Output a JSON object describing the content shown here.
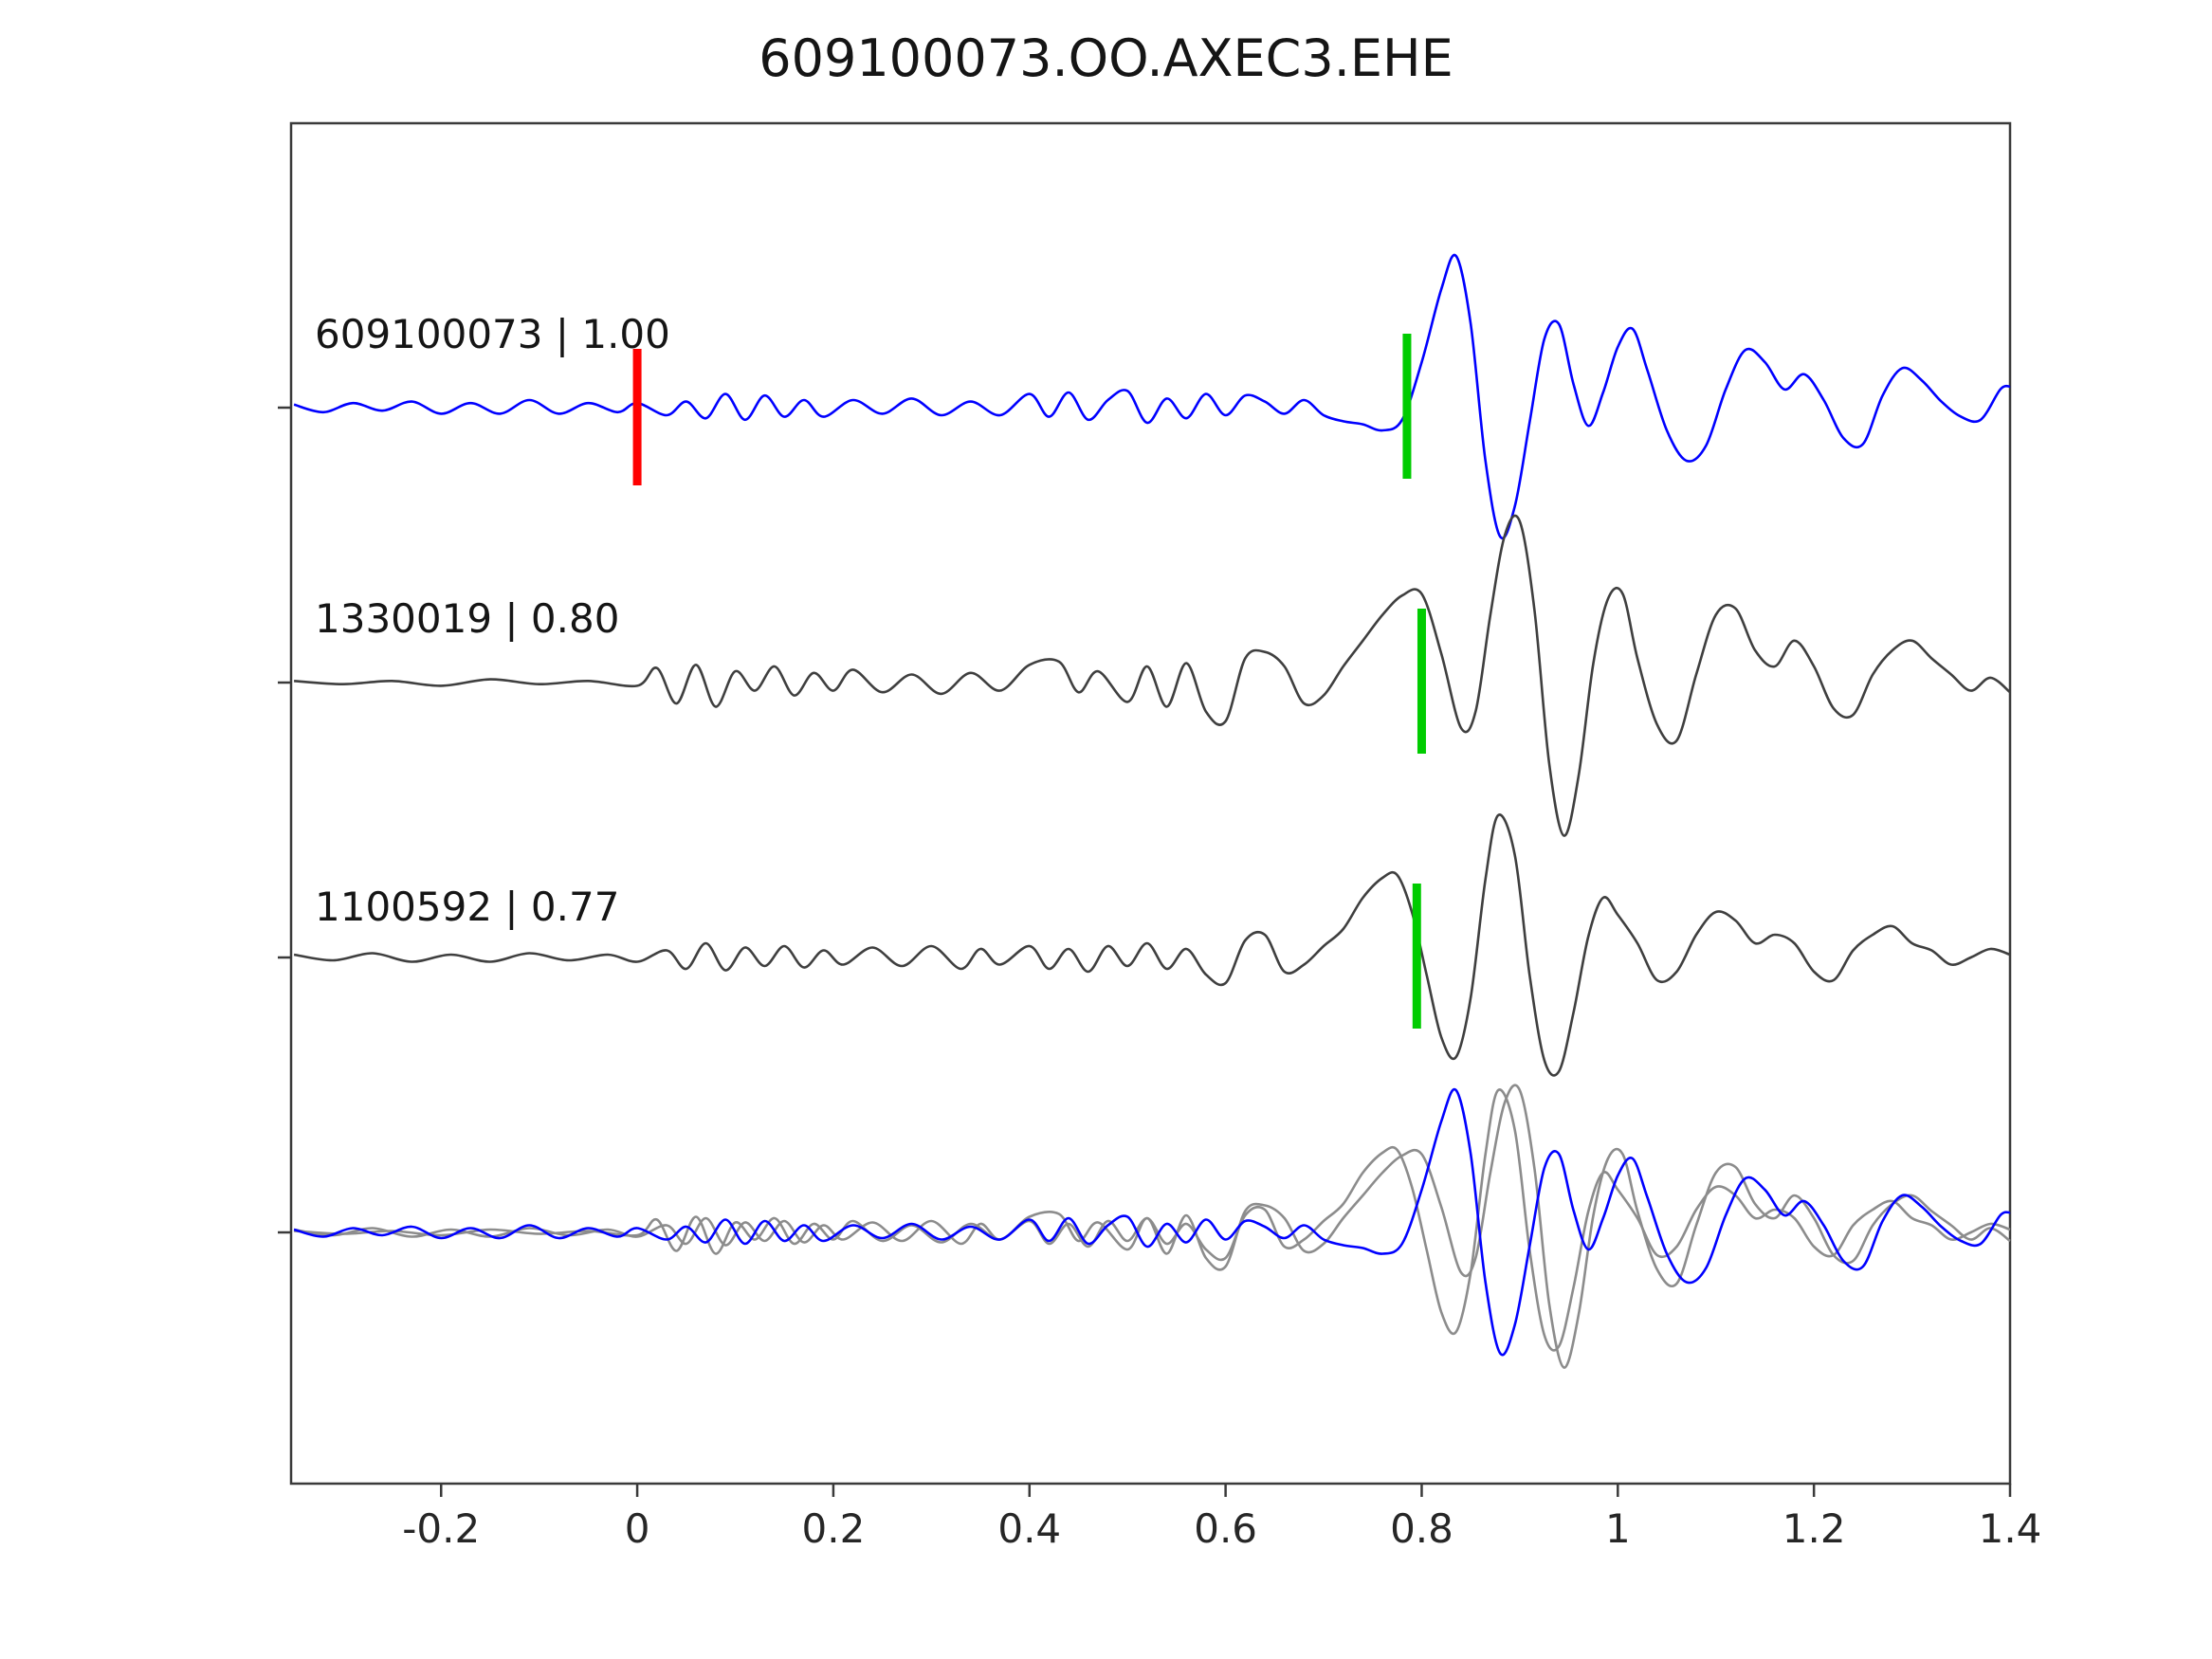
{
  "title": "609100073.OO.AXEC3.EHE",
  "chart_data": {
    "type": "line",
    "title": "609100073.OO.AXEC3.EHE",
    "xlabel": "",
    "ylabel": "",
    "xlim": [
      -0.353,
      1.4
    ],
    "xticks": [
      "-0.2",
      "0",
      "0.2",
      "0.4",
      "0.6",
      "0.8",
      "1",
      "1.2",
      "1.4"
    ],
    "xtick_values": [
      -0.2,
      0,
      0.2,
      0.4,
      0.6,
      0.8,
      1,
      1.2,
      1.4
    ],
    "grid": false,
    "legend": "none",
    "colors": {
      "template_trace": "#0000ff",
      "detection_trace": "#3f3f3f",
      "overlay_gray": "#8c8c8c",
      "pick_green": "#00cc00",
      "pick_red": "#ff0000",
      "axis": "#3a3a3a",
      "tick_text": "#262626"
    },
    "traces": [
      {
        "id": "609100073",
        "correlation": "1.00",
        "label": "609100073 | 1.00",
        "role": "template",
        "color": "#0000ff",
        "row": 0,
        "picks": {
          "red": 0.0,
          "green": 0.785
        },
        "samples": [
          [
            -0.35,
            0.02
          ],
          [
            -0.32,
            -0.03
          ],
          [
            -0.29,
            0.03
          ],
          [
            -0.26,
            -0.02
          ],
          [
            -0.23,
            0.04
          ],
          [
            -0.2,
            -0.04
          ],
          [
            -0.17,
            0.03
          ],
          [
            -0.14,
            -0.04
          ],
          [
            -0.11,
            0.05
          ],
          [
            -0.08,
            -0.04
          ],
          [
            -0.05,
            0.03
          ],
          [
            -0.02,
            -0.03
          ],
          [
            0.0,
            0.03
          ],
          [
            0.03,
            -0.05
          ],
          [
            0.05,
            0.04
          ],
          [
            0.07,
            -0.07
          ],
          [
            0.09,
            0.09
          ],
          [
            0.11,
            -0.08
          ],
          [
            0.13,
            0.08
          ],
          [
            0.15,
            -0.06
          ],
          [
            0.17,
            0.05
          ],
          [
            0.19,
            -0.06
          ],
          [
            0.22,
            0.05
          ],
          [
            0.25,
            -0.04
          ],
          [
            0.28,
            0.06
          ],
          [
            0.31,
            -0.05
          ],
          [
            0.34,
            0.04
          ],
          [
            0.37,
            -0.05
          ],
          [
            0.4,
            0.09
          ],
          [
            0.42,
            -0.06
          ],
          [
            0.44,
            0.1
          ],
          [
            0.46,
            -0.08
          ],
          [
            0.48,
            0.05
          ],
          [
            0.5,
            0.11
          ],
          [
            0.52,
            -0.1
          ],
          [
            0.54,
            0.06
          ],
          [
            0.56,
            -0.07
          ],
          [
            0.58,
            0.09
          ],
          [
            0.6,
            -0.05
          ],
          [
            0.62,
            0.08
          ],
          [
            0.64,
            0.04
          ],
          [
            0.66,
            -0.04
          ],
          [
            0.68,
            0.05
          ],
          [
            0.7,
            -0.05
          ],
          [
            0.72,
            -0.09
          ],
          [
            0.74,
            -0.11
          ],
          [
            0.76,
            -0.15
          ],
          [
            0.78,
            -0.08
          ],
          [
            0.8,
            0.3
          ],
          [
            0.82,
            0.78
          ],
          [
            0.835,
            1.0
          ],
          [
            0.85,
            0.55
          ],
          [
            0.865,
            -0.35
          ],
          [
            0.88,
            -0.85
          ],
          [
            0.895,
            -0.65
          ],
          [
            0.91,
            -0.1
          ],
          [
            0.925,
            0.45
          ],
          [
            0.94,
            0.55
          ],
          [
            0.955,
            0.15
          ],
          [
            0.97,
            -0.12
          ],
          [
            0.985,
            0.1
          ],
          [
            1.0,
            0.4
          ],
          [
            1.015,
            0.52
          ],
          [
            1.03,
            0.25
          ],
          [
            1.05,
            -0.15
          ],
          [
            1.07,
            -0.35
          ],
          [
            1.09,
            -0.25
          ],
          [
            1.11,
            0.12
          ],
          [
            1.13,
            0.38
          ],
          [
            1.15,
            0.3
          ],
          [
            1.17,
            0.12
          ],
          [
            1.19,
            0.22
          ],
          [
            1.21,
            0.05
          ],
          [
            1.23,
            -0.2
          ],
          [
            1.25,
            -0.24
          ],
          [
            1.27,
            0.08
          ],
          [
            1.29,
            0.26
          ],
          [
            1.31,
            0.18
          ],
          [
            1.33,
            0.04
          ],
          [
            1.35,
            -0.06
          ],
          [
            1.37,
            -0.08
          ],
          [
            1.39,
            0.12
          ],
          [
            1.4,
            0.14
          ]
        ]
      },
      {
        "id": "1330019",
        "correlation": "0.80",
        "label": "1330019 | 0.80",
        "role": "detection",
        "color": "#3f3f3f",
        "row": 1,
        "picks": {
          "green": 0.8
        },
        "samples": [
          [
            -0.35,
            0.01
          ],
          [
            -0.3,
            -0.01
          ],
          [
            -0.25,
            0.01
          ],
          [
            -0.2,
            -0.02
          ],
          [
            -0.15,
            0.02
          ],
          [
            -0.1,
            -0.01
          ],
          [
            -0.05,
            0.01
          ],
          [
            0.0,
            -0.02
          ],
          [
            0.02,
            0.09
          ],
          [
            0.04,
            -0.13
          ],
          [
            0.06,
            0.11
          ],
          [
            0.08,
            -0.15
          ],
          [
            0.1,
            0.07
          ],
          [
            0.12,
            -0.05
          ],
          [
            0.14,
            0.1
          ],
          [
            0.16,
            -0.08
          ],
          [
            0.18,
            0.06
          ],
          [
            0.2,
            -0.05
          ],
          [
            0.22,
            0.08
          ],
          [
            0.25,
            -0.06
          ],
          [
            0.28,
            0.05
          ],
          [
            0.31,
            -0.07
          ],
          [
            0.34,
            0.06
          ],
          [
            0.37,
            -0.05
          ],
          [
            0.4,
            0.11
          ],
          [
            0.43,
            0.13
          ],
          [
            0.45,
            -0.06
          ],
          [
            0.47,
            0.07
          ],
          [
            0.5,
            -0.12
          ],
          [
            0.52,
            0.1
          ],
          [
            0.54,
            -0.15
          ],
          [
            0.56,
            0.12
          ],
          [
            0.58,
            -0.18
          ],
          [
            0.6,
            -0.24
          ],
          [
            0.62,
            0.15
          ],
          [
            0.64,
            0.19
          ],
          [
            0.66,
            0.1
          ],
          [
            0.68,
            -0.13
          ],
          [
            0.7,
            -0.08
          ],
          [
            0.72,
            0.1
          ],
          [
            0.74,
            0.26
          ],
          [
            0.76,
            0.42
          ],
          [
            0.78,
            0.54
          ],
          [
            0.8,
            0.55
          ],
          [
            0.82,
            0.18
          ],
          [
            0.84,
            -0.28
          ],
          [
            0.855,
            -0.18
          ],
          [
            0.87,
            0.42
          ],
          [
            0.885,
            0.92
          ],
          [
            0.9,
            1.0
          ],
          [
            0.915,
            0.45
          ],
          [
            0.93,
            -0.5
          ],
          [
            0.945,
            -0.95
          ],
          [
            0.96,
            -0.58
          ],
          [
            0.975,
            0.12
          ],
          [
            0.99,
            0.52
          ],
          [
            1.005,
            0.55
          ],
          [
            1.02,
            0.15
          ],
          [
            1.04,
            -0.26
          ],
          [
            1.06,
            -0.36
          ],
          [
            1.08,
            0.05
          ],
          [
            1.1,
            0.42
          ],
          [
            1.12,
            0.46
          ],
          [
            1.14,
            0.2
          ],
          [
            1.16,
            0.1
          ],
          [
            1.18,
            0.26
          ],
          [
            1.2,
            0.1
          ],
          [
            1.22,
            -0.16
          ],
          [
            1.24,
            -0.2
          ],
          [
            1.26,
            0.05
          ],
          [
            1.28,
            0.2
          ],
          [
            1.3,
            0.26
          ],
          [
            1.32,
            0.15
          ],
          [
            1.34,
            0.05
          ],
          [
            1.36,
            -0.05
          ],
          [
            1.38,
            0.03
          ],
          [
            1.4,
            -0.06
          ]
        ]
      },
      {
        "id": "1100592",
        "correlation": "0.77",
        "label": "1100592 | 0.77",
        "role": "detection",
        "color": "#3f3f3f",
        "row": 2,
        "picks": {
          "green": 0.795
        },
        "samples": [
          [
            -0.35,
            0.02
          ],
          [
            -0.31,
            -0.02
          ],
          [
            -0.27,
            0.03
          ],
          [
            -0.23,
            -0.03
          ],
          [
            -0.19,
            0.02
          ],
          [
            -0.15,
            -0.03
          ],
          [
            -0.11,
            0.03
          ],
          [
            -0.07,
            -0.02
          ],
          [
            -0.03,
            0.02
          ],
          [
            0.0,
            -0.03
          ],
          [
            0.03,
            0.05
          ],
          [
            0.05,
            -0.08
          ],
          [
            0.07,
            0.1
          ],
          [
            0.09,
            -0.09
          ],
          [
            0.11,
            0.07
          ],
          [
            0.13,
            -0.06
          ],
          [
            0.15,
            0.08
          ],
          [
            0.17,
            -0.07
          ],
          [
            0.19,
            0.05
          ],
          [
            0.21,
            -0.05
          ],
          [
            0.24,
            0.07
          ],
          [
            0.27,
            -0.06
          ],
          [
            0.3,
            0.08
          ],
          [
            0.33,
            -0.08
          ],
          [
            0.35,
            0.06
          ],
          [
            0.37,
            -0.05
          ],
          [
            0.4,
            0.08
          ],
          [
            0.42,
            -0.08
          ],
          [
            0.44,
            0.06
          ],
          [
            0.46,
            -0.1
          ],
          [
            0.48,
            0.08
          ],
          [
            0.5,
            -0.06
          ],
          [
            0.52,
            0.1
          ],
          [
            0.54,
            -0.08
          ],
          [
            0.56,
            0.06
          ],
          [
            0.58,
            -0.12
          ],
          [
            0.6,
            -0.18
          ],
          [
            0.62,
            0.12
          ],
          [
            0.64,
            0.16
          ],
          [
            0.66,
            -0.1
          ],
          [
            0.68,
            -0.05
          ],
          [
            0.7,
            0.08
          ],
          [
            0.72,
            0.2
          ],
          [
            0.74,
            0.42
          ],
          [
            0.76,
            0.56
          ],
          [
            0.775,
            0.58
          ],
          [
            0.79,
            0.32
          ],
          [
            0.805,
            -0.12
          ],
          [
            0.82,
            -0.56
          ],
          [
            0.835,
            -0.7
          ],
          [
            0.85,
            -0.28
          ],
          [
            0.865,
            0.55
          ],
          [
            0.878,
            1.0
          ],
          [
            0.895,
            0.72
          ],
          [
            0.91,
            -0.12
          ],
          [
            0.925,
            -0.72
          ],
          [
            0.94,
            -0.8
          ],
          [
            0.955,
            -0.38
          ],
          [
            0.97,
            0.15
          ],
          [
            0.985,
            0.42
          ],
          [
            1.0,
            0.3
          ],
          [
            1.02,
            0.1
          ],
          [
            1.04,
            -0.16
          ],
          [
            1.06,
            -0.1
          ],
          [
            1.08,
            0.16
          ],
          [
            1.1,
            0.32
          ],
          [
            1.12,
            0.26
          ],
          [
            1.14,
            0.1
          ],
          [
            1.16,
            0.16
          ],
          [
            1.18,
            0.1
          ],
          [
            1.2,
            -0.1
          ],
          [
            1.22,
            -0.16
          ],
          [
            1.24,
            0.05
          ],
          [
            1.26,
            0.16
          ],
          [
            1.28,
            0.22
          ],
          [
            1.3,
            0.1
          ],
          [
            1.32,
            0.05
          ],
          [
            1.34,
            -0.05
          ],
          [
            1.36,
            0.0
          ],
          [
            1.38,
            0.06
          ],
          [
            1.4,
            0.02
          ]
        ]
      },
      {
        "id": "stack-overlay",
        "label": "",
        "role": "overlay",
        "row": 3,
        "components": [
          {
            "ref": "1330019",
            "color": "#8c8c8c"
          },
          {
            "ref": "1100592",
            "color": "#8c8c8c"
          },
          {
            "ref": "609100073",
            "color": "#0000ff"
          }
        ]
      }
    ]
  }
}
